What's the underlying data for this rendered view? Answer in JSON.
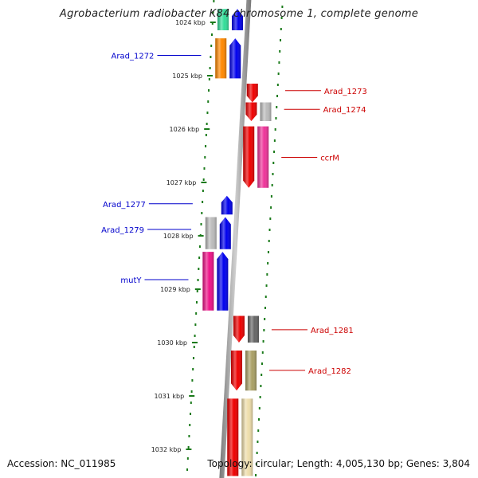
{
  "title": "Agrobacterium radiobacter K84 chromosome 1, complete genome",
  "footer": {
    "accession": "Accession: NC_011985",
    "info": "Topology: circular; Length: 4,005,130 bp; Genes: 3,804"
  },
  "colors": {
    "forward_label": "#0000cc",
    "reverse_label": "#cc0000",
    "dots": "#1a7a1a",
    "axis": "#888888"
  },
  "ticks": [
    {
      "label": "1024 kbp",
      "kbp": 1024
    },
    {
      "label": "1025 kbp",
      "kbp": 1025
    },
    {
      "label": "1026 kbp",
      "kbp": 1026
    },
    {
      "label": "1027 kbp",
      "kbp": 1027
    },
    {
      "label": "1028 kbp",
      "kbp": 1028
    },
    {
      "label": "1029 kbp",
      "kbp": 1029
    },
    {
      "label": "1030 kbp",
      "kbp": 1030
    },
    {
      "label": "1031 kbp",
      "kbp": 1031
    },
    {
      "label": "1032 kbp",
      "kbp": 1032
    }
  ],
  "genes": [
    {
      "strand": "+",
      "start": 1023.75,
      "end": 1024.15,
      "color": "#33dd99"
    },
    {
      "strand": "+",
      "start": 1023.75,
      "end": 1024.15,
      "color": "#0000ee",
      "arrow": true,
      "inner": true
    },
    {
      "strand": "+",
      "start": 1024.3,
      "end": 1025.05,
      "color": "#ff8800"
    },
    {
      "strand": "+",
      "start": 1024.3,
      "end": 1025.05,
      "color": "#0000ee",
      "arrow": true,
      "inner": true
    },
    {
      "strand": "-",
      "start": 1025.15,
      "end": 1025.5,
      "color": "#ee0000",
      "arrow": true,
      "inner": true
    },
    {
      "strand": "-",
      "start": 1025.5,
      "end": 1025.85,
      "color": "#ee0000",
      "arrow": true,
      "inner": true
    },
    {
      "strand": "-",
      "start": 1025.5,
      "end": 1025.85,
      "color": "#bbbbbb"
    },
    {
      "strand": "-",
      "start": 1025.95,
      "end": 1027.1,
      "color": "#ee0000",
      "arrow": true,
      "inner": true
    },
    {
      "strand": "-",
      "start": 1025.95,
      "end": 1027.1,
      "color": "#ee3399"
    },
    {
      "strand": "+",
      "start": 1027.25,
      "end": 1027.6,
      "color": "#0000ee",
      "arrow": true,
      "inner": true
    },
    {
      "strand": "+",
      "start": 1027.65,
      "end": 1028.25,
      "color": "#bbbbbb"
    },
    {
      "strand": "+",
      "start": 1027.65,
      "end": 1028.25,
      "color": "#0000ee",
      "arrow": true,
      "inner": true
    },
    {
      "strand": "+",
      "start": 1028.3,
      "end": 1029.4,
      "color": "#ee1188"
    },
    {
      "strand": "+",
      "start": 1028.3,
      "end": 1029.4,
      "color": "#0000ee",
      "arrow": true,
      "inner": true
    },
    {
      "strand": "-",
      "start": 1029.5,
      "end": 1030.0,
      "color": "#ee0000",
      "arrow": true,
      "inner": true
    },
    {
      "strand": "-",
      "start": 1029.5,
      "end": 1030.0,
      "color": "#666666"
    },
    {
      "strand": "-",
      "start": 1030.15,
      "end": 1030.9,
      "color": "#ee0000",
      "arrow": true,
      "inner": true
    },
    {
      "strand": "-",
      "start": 1030.15,
      "end": 1030.9,
      "color": "#aaa066"
    },
    {
      "strand": "-",
      "start": 1031.05,
      "end": 1032.5,
      "color": "#ee0000",
      "inner": true
    },
    {
      "strand": "-",
      "start": 1031.05,
      "end": 1032.5,
      "color": "#eeddaa"
    }
  ],
  "labels": [
    {
      "text": "Arad_1272",
      "strand": "+",
      "kbp": 1024.62
    },
    {
      "text": "Arad_1273",
      "strand": "-",
      "kbp": 1025.28
    },
    {
      "text": "Arad_1274",
      "strand": "-",
      "kbp": 1025.63
    },
    {
      "text": "ccrM",
      "strand": "-",
      "kbp": 1026.53
    },
    {
      "text": "Arad_1277",
      "strand": "+",
      "kbp": 1027.4
    },
    {
      "text": "Arad_1279",
      "strand": "+",
      "kbp": 1027.88
    },
    {
      "text": "mutY",
      "strand": "+",
      "kbp": 1028.82
    },
    {
      "text": "Arad_1281",
      "strand": "-",
      "kbp": 1029.76
    },
    {
      "text": "Arad_1282",
      "strand": "-",
      "kbp": 1030.52
    }
  ]
}
